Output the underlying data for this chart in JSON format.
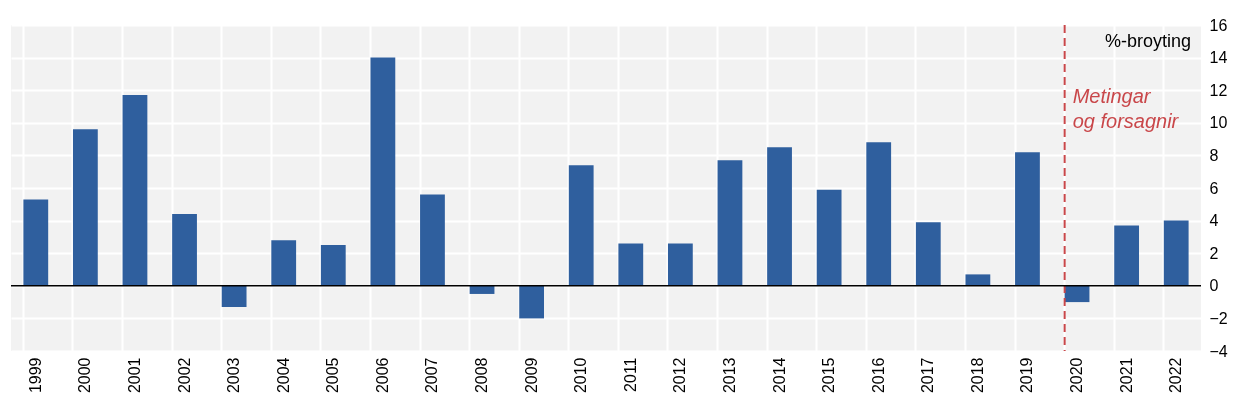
{
  "chart_data": {
    "type": "bar",
    "ylabel": "%-broyting",
    "categories": [
      "1999",
      "2000",
      "2001",
      "2002",
      "2003",
      "2004",
      "2005",
      "2006",
      "2007",
      "2008",
      "2009",
      "2010",
      "2011",
      "2012",
      "2013",
      "2014",
      "2015",
      "2016",
      "2017",
      "2018",
      "2019",
      "2020",
      "2021",
      "2022"
    ],
    "values": [
      5.3,
      9.6,
      11.7,
      4.4,
      -1.3,
      2.8,
      2.5,
      14.0,
      5.6,
      -0.5,
      -2.0,
      7.4,
      2.6,
      2.6,
      7.7,
      8.5,
      5.9,
      8.8,
      3.9,
      0.7,
      8.2,
      -1.0,
      3.7,
      4.0
    ],
    "color": "#2f5f9e",
    "ylim": [
      -4,
      16
    ],
    "yticks": [
      -4,
      -2,
      0,
      2,
      4,
      6,
      8,
      10,
      12,
      14,
      16
    ],
    "grid": true,
    "ref_lines": [
      {
        "axis": "x",
        "value": "2020",
        "label": "Metingar\nog forsagnir",
        "color": "#c9474a",
        "line_style": "dashed"
      },
      {
        "axis": "y",
        "value": 0,
        "color": "#000000",
        "line_style": "solid"
      }
    ]
  }
}
